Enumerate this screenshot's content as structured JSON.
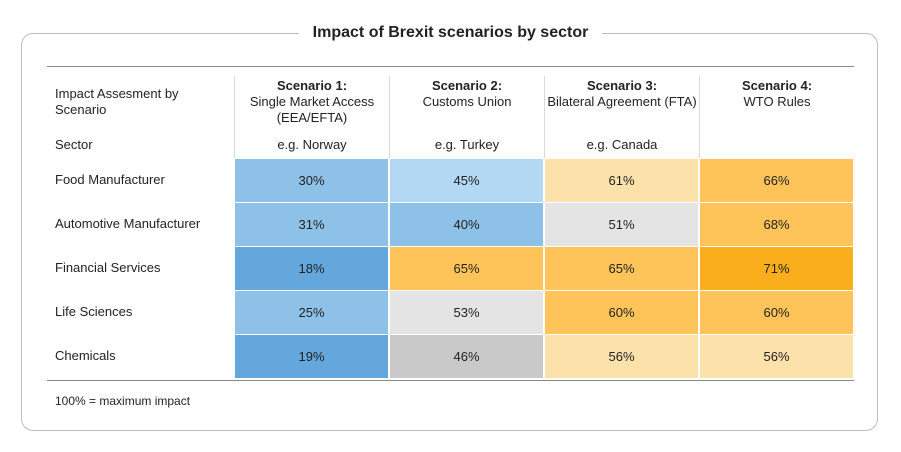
{
  "chart_data": {
    "type": "table",
    "title": "Impact of Brexit scenarios by sector",
    "corner_header": "Impact Assesment by Scenario",
    "row_header": "Sector",
    "columns": [
      {
        "name": "Scenario 1:",
        "description": "Single Market Access (EEA/EFTA)",
        "example": "e.g. Norway"
      },
      {
        "name": "Scenario 2:",
        "description": "Customs Union",
        "example": "e.g. Turkey"
      },
      {
        "name": "Scenario 3:",
        "description": "Bilateral Agreement (FTA)",
        "example": "e.g. Canada"
      },
      {
        "name": "Scenario 4:",
        "description": "WTO Rules",
        "example": ""
      }
    ],
    "rows": [
      {
        "label": "Food Manufacturer",
        "values": [
          "30%",
          "45%",
          "61%",
          "66%"
        ],
        "colors": [
          "#8ec1e8",
          "#b3d8f4",
          "#fde1ab",
          "#fec45a"
        ]
      },
      {
        "label": "Automotive Manufacturer",
        "values": [
          "31%",
          "40%",
          "51%",
          "68%"
        ],
        "colors": [
          "#8ec1e8",
          "#8ec1e8",
          "#e4e4e4",
          "#fec45a"
        ]
      },
      {
        "label": "Financial Services",
        "values": [
          "18%",
          "65%",
          "65%",
          "71%"
        ],
        "colors": [
          "#64a7dc",
          "#fec45a",
          "#fec45a",
          "#fbae1c"
        ]
      },
      {
        "label": "Life Sciences",
        "values": [
          "25%",
          "53%",
          "60%",
          "60%"
        ],
        "colors": [
          "#8ec1e8",
          "#e4e4e4",
          "#fec45a",
          "#fec45a"
        ]
      },
      {
        "label": "Chemicals",
        "values": [
          "19%",
          "46%",
          "56%",
          "56%"
        ],
        "colors": [
          "#64a7dc",
          "#c9c9c9",
          "#fde1ab",
          "#fde1ab"
        ]
      }
    ],
    "footnote": "100% = maximum impact"
  }
}
